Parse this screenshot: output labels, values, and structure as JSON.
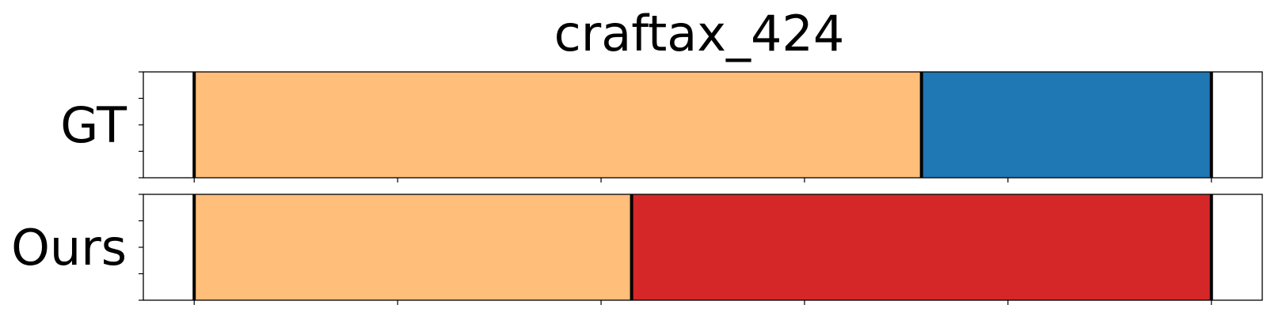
{
  "chart_data": {
    "type": "segmentation",
    "title": "craftax_424",
    "x_start": 0,
    "x_end": 100,
    "xlim": [
      -5,
      105
    ],
    "ticks": [
      0,
      20,
      40,
      60,
      80,
      100
    ],
    "rows": [
      {
        "label": "GT",
        "segments": [
          {
            "start": 0,
            "end": 71.5,
            "color": "#ffbe7a"
          },
          {
            "start": 71.5,
            "end": 100,
            "color": "#1f77b4"
          }
        ]
      },
      {
        "label": "Ours",
        "segments": [
          {
            "start": 0,
            "end": 43,
            "color": "#ffbe7a"
          },
          {
            "start": 43,
            "end": 100,
            "color": "#d62728"
          }
        ]
      }
    ]
  }
}
